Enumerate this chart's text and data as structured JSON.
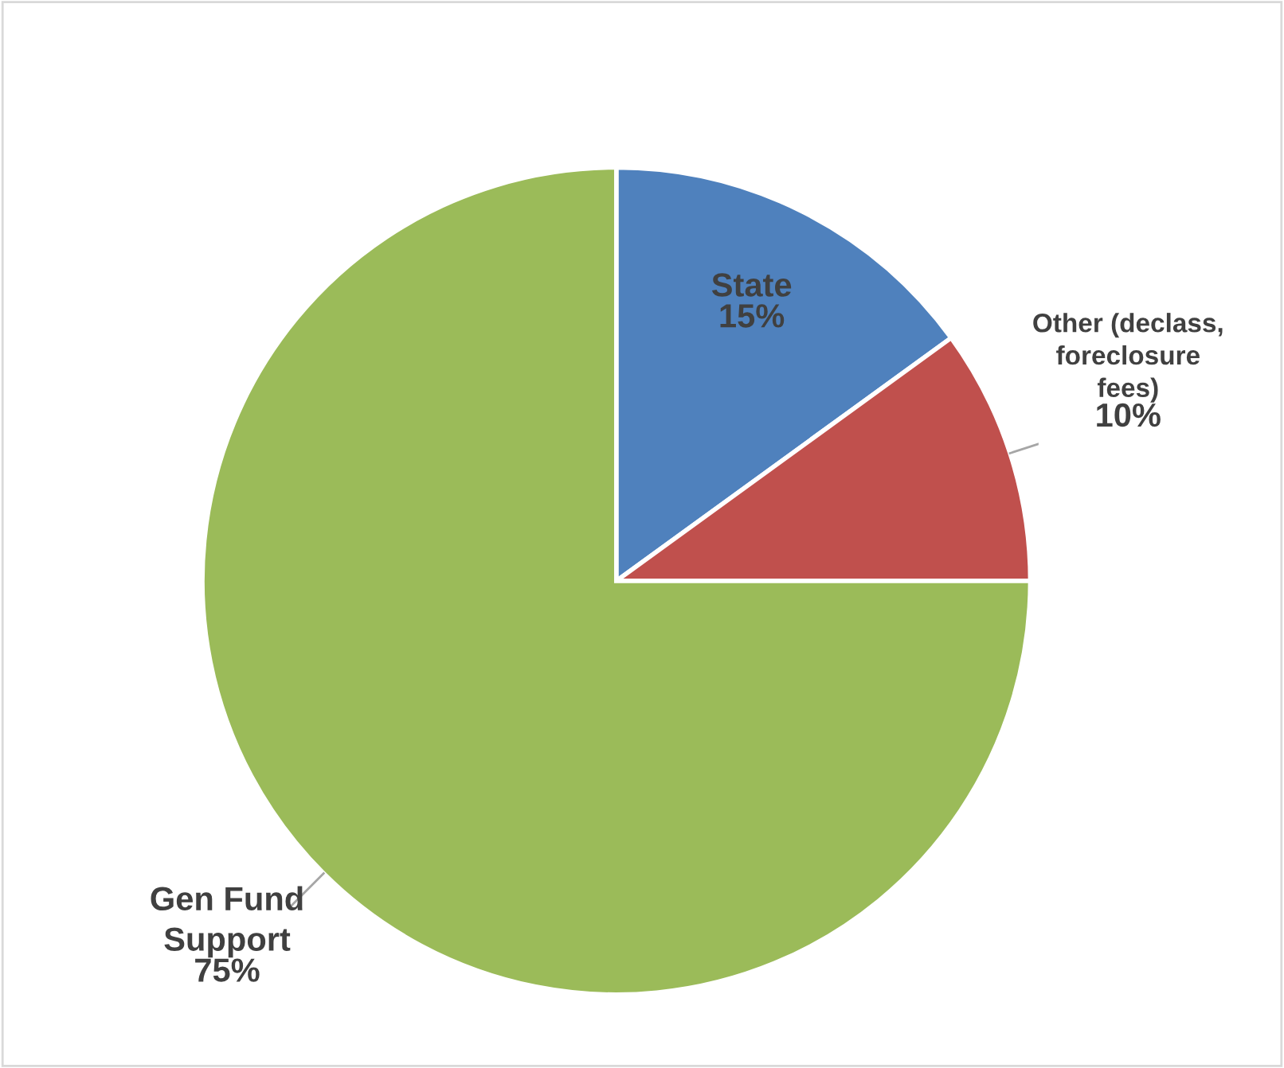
{
  "chart_data": {
    "type": "pie",
    "categories": [
      "State",
      "Other (declass,\nforeclosure\nfees)",
      "Gen Fund\nSupport"
    ],
    "values": [
      15,
      10,
      75
    ],
    "colors": [
      "#4f81bd",
      "#c0504d",
      "#9bbb59"
    ],
    "value_labels": [
      "15%",
      "10%",
      "75%"
    ],
    "legend": false
  }
}
